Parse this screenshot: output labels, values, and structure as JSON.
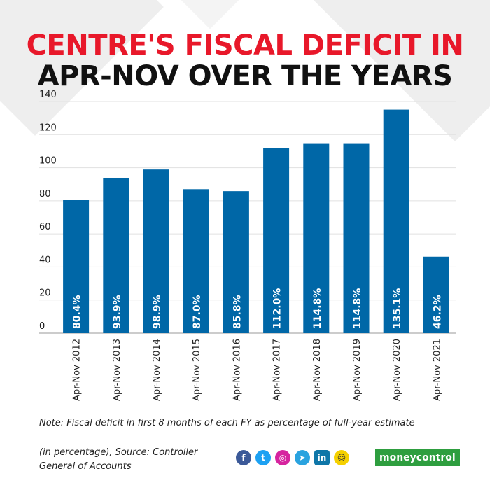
{
  "title_line1": "CENTRE'S FISCAL DEFICIT IN",
  "title_line2": "APR-NOV OVER THE YEARS",
  "note": "Note: Fiscal deficit in first 8 months of each FY as percentage of full-year estimate",
  "source": "(in percentage), Source: Controller General of  Accounts",
  "brand": "moneycontrol",
  "colors": {
    "bar": "#0067a7",
    "title_red": "#e8182a",
    "brand_green": "#2e9e3f"
  },
  "social_icons": [
    "facebook-icon",
    "twitter-icon",
    "instagram-icon",
    "telegram-icon",
    "linkedin-icon",
    "snapchat-icon"
  ],
  "chart_data": {
    "type": "bar",
    "categories": [
      "Apr-Nov 2012",
      "Apr-Nov 2013",
      "Apr-Nov 2014",
      "Apr-Nov 2015",
      "Apr-Nov 2016",
      "Apr-Nov 2017",
      "Apr-Nov 2018",
      "Apr-Nov 2019",
      "Apr-Nov 2020",
      "Apr-Nov 2021"
    ],
    "values": [
      80.4,
      93.9,
      98.9,
      87.0,
      85.8,
      112.0,
      114.8,
      114.8,
      135.1,
      46.2
    ],
    "data_labels": [
      "80.4%",
      "93.9%",
      "98.9%",
      "87.0%",
      "85.8%",
      "112.0%",
      "114.8%",
      "114.8%",
      "135.1%",
      "46.2%"
    ],
    "yticks": [
      0,
      20,
      40,
      60,
      80,
      100,
      120,
      140
    ],
    "ylim": [
      0,
      140
    ],
    "grid": true,
    "legend": "none"
  }
}
